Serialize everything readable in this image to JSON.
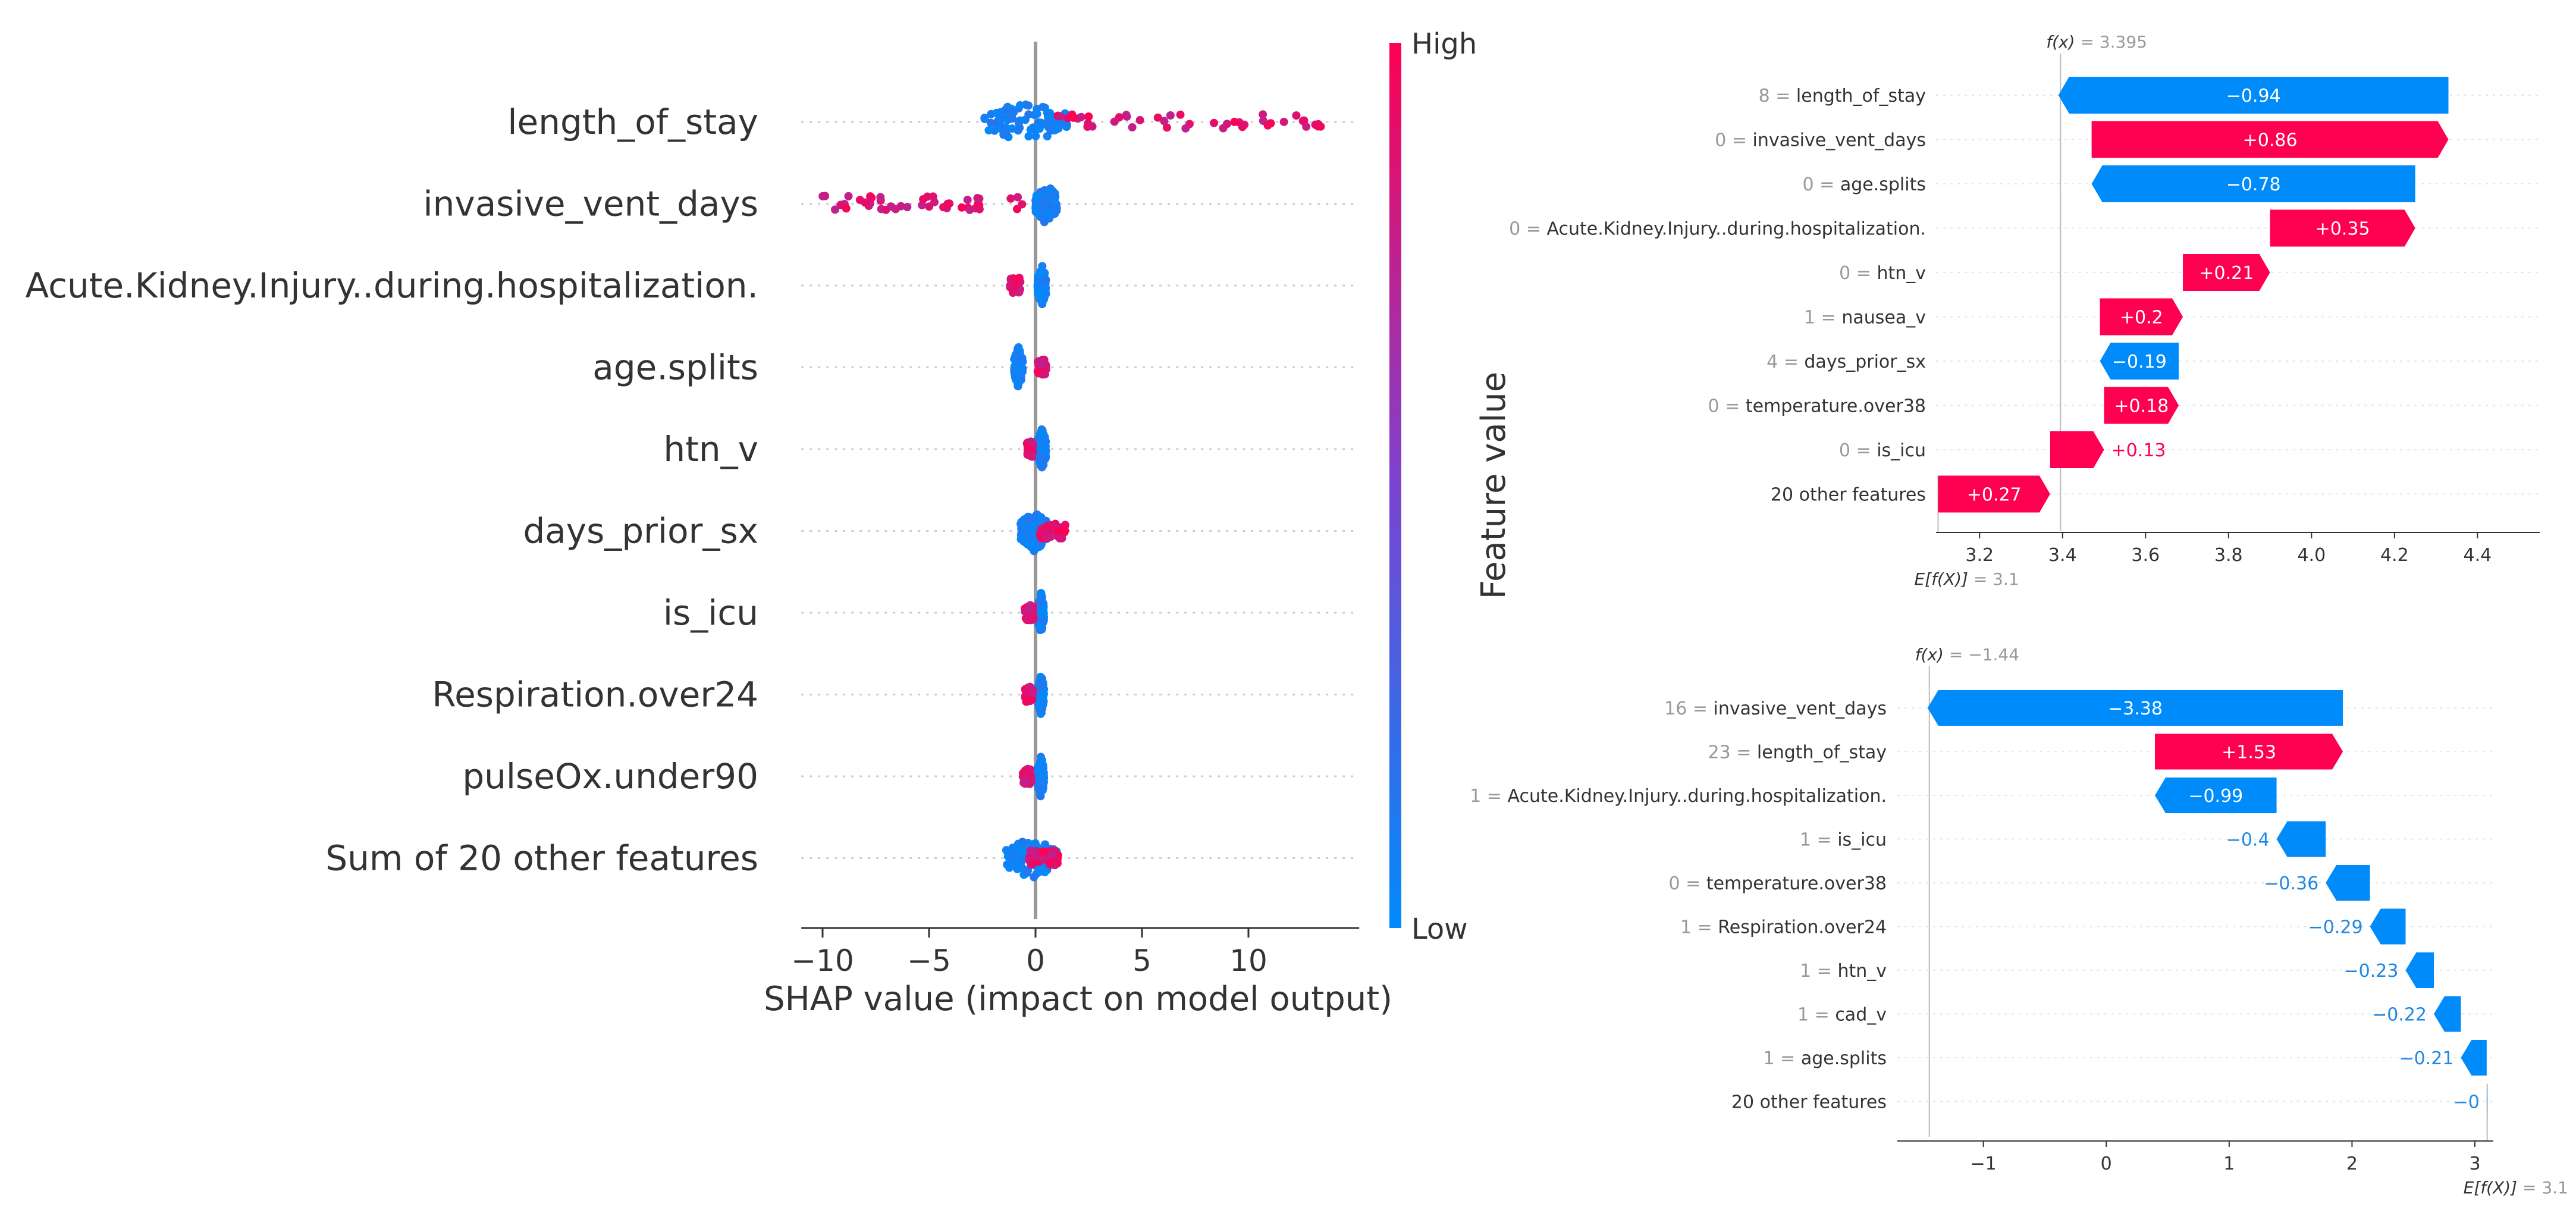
{
  "colors": {
    "pos": "#ff0051",
    "neg": "#008bfb",
    "pos_text": "#ffffff",
    "neg_label_outside": "#1e88e5",
    "axis": "#333333",
    "label": "#333333",
    "faint": "#999999",
    "grid": "#cccccc"
  },
  "chart_data": [
    {
      "type": "scatter",
      "subtype": "beeswarm",
      "xlabel": "SHAP value (impact on model output)",
      "xlim": [
        -11,
        15
      ],
      "xticks": [
        -10,
        -5,
        0,
        5,
        10
      ],
      "xtick_labels": [
        "−10",
        "−5",
        "0",
        "5",
        "10"
      ],
      "colorbar": {
        "label": "Feature value",
        "high": "High",
        "low": "Low"
      },
      "features": [
        {
          "name": "length_of_stay",
          "low_range": [
            -2.4,
            1.5
          ],
          "high_range": [
            1.0,
            13.5
          ]
        },
        {
          "name": "invasive_vent_days",
          "low_range": [
            0,
            1.0
          ],
          "high_range": [
            -10,
            0
          ]
        },
        {
          "name": "Acute.Kidney.Injury..during.hospitalization.",
          "low_range": [
            0.1,
            0.5
          ],
          "high_range": [
            -1.2,
            -0.7
          ]
        },
        {
          "name": "age.splits",
          "low_range": [
            -1.0,
            -0.6
          ],
          "high_range": [
            0.1,
            0.5
          ]
        },
        {
          "name": "htn_v",
          "low_range": [
            0.1,
            0.5
          ],
          "high_range": [
            -0.4,
            -0.1
          ]
        },
        {
          "name": "days_prior_sx",
          "low_range": [
            -0.7,
            0.6
          ],
          "high_range": [
            0.2,
            1.4
          ]
        },
        {
          "name": "is_icu",
          "low_range": [
            0.1,
            0.4
          ],
          "high_range": [
            -0.5,
            -0.1
          ]
        },
        {
          "name": "Respiration.over24",
          "low_range": [
            0.1,
            0.4
          ],
          "high_range": [
            -0.5,
            -0.1
          ]
        },
        {
          "name": "pulseOx.under90",
          "low_range": [
            0.1,
            0.4
          ],
          "high_range": [
            -0.6,
            -0.2
          ]
        },
        {
          "name": "Sum of 20 other features",
          "low_range": [
            -1.4,
            1.0
          ],
          "high_range": [
            -0.3,
            1.1
          ]
        }
      ]
    },
    {
      "type": "bar",
      "subtype": "waterfall",
      "fx_label": "= 3.395",
      "efx_label": "= 3.1",
      "fx": 3.395,
      "base": 3.1,
      "xlim": [
        3.095,
        4.55
      ],
      "xticks": [
        3.2,
        3.4,
        3.6,
        3.8,
        4.0,
        4.2,
        4.4
      ],
      "xtick_labels": [
        "3.2",
        "3.4",
        "3.6",
        "3.8",
        "4.0",
        "4.2",
        "4.4"
      ],
      "rows": [
        {
          "fval": "8",
          "feature": "length_of_stay",
          "value": -0.94,
          "label": "−0.94"
        },
        {
          "fval": "0",
          "feature": "invasive_vent_days",
          "value": 0.86,
          "label": "+0.86"
        },
        {
          "fval": "0",
          "feature": "age.splits",
          "value": -0.78,
          "label": "−0.78"
        },
        {
          "fval": "0",
          "feature": "Acute.Kidney.Injury..during.hospitalization.",
          "value": 0.35,
          "label": "+0.35"
        },
        {
          "fval": "0",
          "feature": "htn_v",
          "value": 0.21,
          "label": "+0.21"
        },
        {
          "fval": "1",
          "feature": "nausea_v",
          "value": 0.2,
          "label": "+0.2"
        },
        {
          "fval": "4",
          "feature": "days_prior_sx",
          "value": -0.19,
          "label": "−0.19"
        },
        {
          "fval": "0",
          "feature": "temperature.over38",
          "value": 0.18,
          "label": "+0.18"
        },
        {
          "fval": "0",
          "feature": "is_icu",
          "value": 0.13,
          "label": "+0.13"
        },
        {
          "fval": "",
          "feature": "20 other features",
          "value": 0.27,
          "label": "+0.27"
        }
      ]
    },
    {
      "type": "bar",
      "subtype": "waterfall",
      "fx_label": "= −1.44",
      "efx_label": "= 3.1",
      "fx": -1.44,
      "base": 3.1,
      "xlim": [
        -1.7,
        3.15
      ],
      "xticks": [
        -1,
        0,
        1,
        2,
        3
      ],
      "xtick_labels": [
        "−1",
        "0",
        "1",
        "2",
        "3"
      ],
      "rows": [
        {
          "fval": "16",
          "feature": "invasive_vent_days",
          "value": -3.38,
          "label": "−3.38"
        },
        {
          "fval": "23",
          "feature": "length_of_stay",
          "value": 1.53,
          "label": "+1.53"
        },
        {
          "fval": "1",
          "feature": "Acute.Kidney.Injury..during.hospitalization.",
          "value": -0.99,
          "label": "−0.99"
        },
        {
          "fval": "1",
          "feature": "is_icu",
          "value": -0.4,
          "label": "−0.4"
        },
        {
          "fval": "0",
          "feature": "temperature.over38",
          "value": -0.36,
          "label": "−0.36"
        },
        {
          "fval": "1",
          "feature": "Respiration.over24",
          "value": -0.29,
          "label": "−0.29"
        },
        {
          "fval": "1",
          "feature": "htn_v",
          "value": -0.23,
          "label": "−0.23"
        },
        {
          "fval": "1",
          "feature": "cad_v",
          "value": -0.22,
          "label": "−0.22"
        },
        {
          "fval": "1",
          "feature": "age.splits",
          "value": -0.21,
          "label": "−0.21"
        },
        {
          "fval": "",
          "feature": "20 other features",
          "value": -0.004,
          "label": "−0"
        }
      ]
    }
  ]
}
